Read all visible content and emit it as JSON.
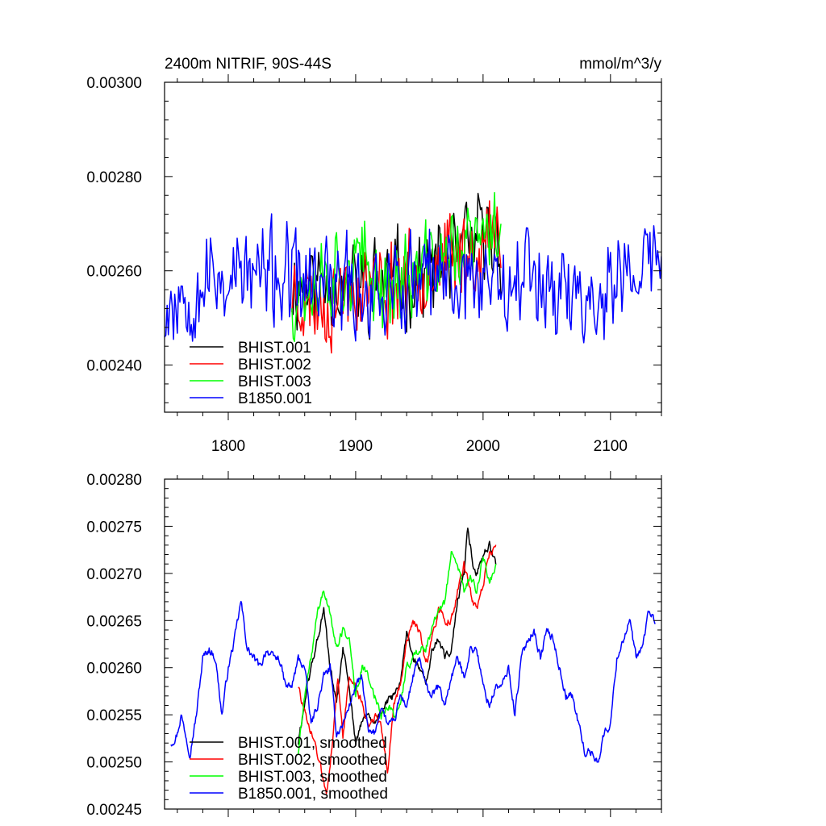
{
  "chart_data": [
    {
      "type": "line",
      "title_left": "2400m NITRIF, 90S-44S",
      "title_right": "mmol/m^3/y",
      "xlim": [
        1750,
        2140
      ],
      "ylim": [
        0.0023,
        0.003
      ],
      "x_ticks": [
        1800,
        1900,
        2000,
        2100
      ],
      "x_tick_labels": [
        "1800",
        "1900",
        "2000",
        "2100"
      ],
      "y_ticks": [
        0.0024,
        0.0026,
        0.0028,
        0.003
      ],
      "y_tick_labels": [
        "0.00240",
        "0.00260",
        "0.00280",
        "0.00300"
      ],
      "legend": [
        "BHIST.001",
        "BHIST.002",
        "BHIST.003",
        "B1850.001"
      ],
      "legend_location": "lower-left",
      "series": [
        {
          "name": "BHIST.001",
          "color": "#000000",
          "start": 1850,
          "end": 2014,
          "base": [
            [
              1850,
              0.00257
            ],
            [
              1875,
              0.00258
            ],
            [
              1900,
              0.00256
            ],
            [
              1925,
              0.00258
            ],
            [
              1950,
              0.00259
            ],
            [
              1975,
              0.00262
            ],
            [
              2000,
              0.00267
            ],
            [
              2014,
              0.00266
            ]
          ],
          "noise": 0.00011,
          "seed": 11
        },
        {
          "name": "BHIST.002",
          "color": "#ff0000",
          "start": 1850,
          "end": 2014,
          "base": [
            [
              1850,
              0.00256
            ],
            [
              1875,
              0.00253
            ],
            [
              1900,
              0.00257
            ],
            [
              1925,
              0.00256
            ],
            [
              1950,
              0.00261
            ],
            [
              1975,
              0.00262
            ],
            [
              2000,
              0.00265
            ],
            [
              2014,
              0.00268
            ]
          ],
          "noise": 0.00011,
          "seed": 23
        },
        {
          "name": "BHIST.003",
          "color": "#00ff00",
          "start": 1850,
          "end": 2014,
          "base": [
            [
              1850,
              0.00255
            ],
            [
              1875,
              0.0026
            ],
            [
              1900,
              0.00261
            ],
            [
              1925,
              0.00257
            ],
            [
              1950,
              0.00259
            ],
            [
              1975,
              0.00264
            ],
            [
              2000,
              0.00266
            ],
            [
              2014,
              0.0027
            ]
          ],
          "noise": 0.00011,
          "seed": 37
        },
        {
          "name": "B1850.001",
          "color": "#0000ff",
          "start": 1750,
          "end": 2140,
          "base": [
            [
              1750,
              0.00253
            ],
            [
              1780,
              0.00258
            ],
            [
              1800,
              0.00259
            ],
            [
              1830,
              0.00259
            ],
            [
              1860,
              0.00257
            ],
            [
              1900,
              0.00256
            ],
            [
              1950,
              0.00257
            ],
            [
              2000,
              0.00259
            ],
            [
              2040,
              0.0026
            ],
            [
              2080,
              0.00253
            ],
            [
              2110,
              0.00258
            ],
            [
              2140,
              0.00264
            ]
          ],
          "noise": 0.00012,
          "seed": 53
        }
      ]
    },
    {
      "type": "line",
      "xlim": [
        1750,
        2140
      ],
      "ylim": [
        0.00245,
        0.0028
      ],
      "x_ticks": [
        1800,
        1900,
        2000,
        2100
      ],
      "y_ticks": [
        0.00245,
        0.0025,
        0.00255,
        0.0026,
        0.00265,
        0.0027,
        0.00275,
        0.0028
      ],
      "y_tick_labels": [
        "0.00245",
        "0.00250",
        "0.00255",
        "0.00260",
        "0.00265",
        "0.00270",
        "0.00275",
        "0.00280"
      ],
      "legend": [
        "BHIST.001, smoothed",
        "BHIST.002, smoothed",
        "BHIST.003, smoothed",
        "B1850.001, smoothed"
      ],
      "legend_location": "lower-left",
      "series": [
        {
          "name": "BHIST.001, smoothed",
          "color": "#000000",
          "start": 1855,
          "end": 2010,
          "base": [
            [
              1855,
              0.00252
            ],
            [
              1862,
              0.00258
            ],
            [
              1870,
              0.00263
            ],
            [
              1875,
              0.00266
            ],
            [
              1880,
              0.0026
            ],
            [
              1885,
              0.00256
            ],
            [
              1890,
              0.00262
            ],
            [
              1895,
              0.00258
            ],
            [
              1900,
              0.00252
            ],
            [
              1907,
              0.00255
            ],
            [
              1915,
              0.00254
            ],
            [
              1922,
              0.00256
            ],
            [
              1930,
              0.00257
            ],
            [
              1935,
              0.00258
            ],
            [
              1940,
              0.00264
            ],
            [
              1945,
              0.00261
            ],
            [
              1950,
              0.0026
            ],
            [
              1955,
              0.00258
            ],
            [
              1960,
              0.00262
            ],
            [
              1965,
              0.00263
            ],
            [
              1970,
              0.00261
            ],
            [
              1975,
              0.00262
            ],
            [
              1980,
              0.00267
            ],
            [
              1985,
              0.0027
            ],
            [
              1988,
              0.00275
            ],
            [
              1992,
              0.00271
            ],
            [
              1995,
              0.0027
            ],
            [
              2000,
              0.00272
            ],
            [
              2005,
              0.00273
            ],
            [
              2010,
              0.00271
            ]
          ],
          "noise": 9e-06,
          "seed": 61
        },
        {
          "name": "BHIST.002, smoothed",
          "color": "#ff0000",
          "start": 1855,
          "end": 2010,
          "base": [
            [
              1855,
              0.00258
            ],
            [
              1862,
              0.00254
            ],
            [
              1868,
              0.00252
            ],
            [
              1873,
              0.00249
            ],
            [
              1877,
              0.00247
            ],
            [
              1882,
              0.00252
            ],
            [
              1886,
              0.00259
            ],
            [
              1890,
              0.00253
            ],
            [
              1895,
              0.00259
            ],
            [
              1900,
              0.00258
            ],
            [
              1905,
              0.00256
            ],
            [
              1910,
              0.00254
            ],
            [
              1915,
              0.00255
            ],
            [
              1920,
              0.00254
            ],
            [
              1925,
              0.00249
            ],
            [
              1930,
              0.00256
            ],
            [
              1935,
              0.00258
            ],
            [
              1940,
              0.00263
            ],
            [
              1945,
              0.00265
            ],
            [
              1950,
              0.00264
            ],
            [
              1955,
              0.0026
            ],
            [
              1960,
              0.00263
            ],
            [
              1965,
              0.00266
            ],
            [
              1970,
              0.00265
            ],
            [
              1975,
              0.00265
            ],
            [
              1980,
              0.00268
            ],
            [
              1985,
              0.00271
            ],
            [
              1990,
              0.00268
            ],
            [
              1995,
              0.00266
            ],
            [
              2000,
              0.00269
            ],
            [
              2005,
              0.00272
            ],
            [
              2010,
              0.00273
            ]
          ],
          "noise": 9e-06,
          "seed": 73
        },
        {
          "name": "BHIST.003, smoothed",
          "color": "#00ff00",
          "start": 1855,
          "end": 2010,
          "base": [
            [
              1855,
              0.00251
            ],
            [
              1860,
              0.00257
            ],
            [
              1865,
              0.00261
            ],
            [
              1870,
              0.00266
            ],
            [
              1875,
              0.00268
            ],
            [
              1880,
              0.00266
            ],
            [
              1885,
              0.00262
            ],
            [
              1890,
              0.00264
            ],
            [
              1895,
              0.00263
            ],
            [
              1900,
              0.00257
            ],
            [
              1905,
              0.0026
            ],
            [
              1910,
              0.00259
            ],
            [
              1915,
              0.00257
            ],
            [
              1920,
              0.00255
            ],
            [
              1925,
              0.00256
            ],
            [
              1930,
              0.00255
            ],
            [
              1935,
              0.00256
            ],
            [
              1940,
              0.0026
            ],
            [
              1945,
              0.00261
            ],
            [
              1950,
              0.00262
            ],
            [
              1955,
              0.00262
            ],
            [
              1960,
              0.00264
            ],
            [
              1965,
              0.00266
            ],
            [
              1970,
              0.00267
            ],
            [
              1975,
              0.00272
            ],
            [
              1980,
              0.00271
            ],
            [
              1985,
              0.00268
            ],
            [
              1990,
              0.0027
            ],
            [
              1995,
              0.00268
            ],
            [
              2000,
              0.00272
            ],
            [
              2005,
              0.00269
            ],
            [
              2010,
              0.00271
            ]
          ],
          "noise": 9e-06,
          "seed": 89
        },
        {
          "name": "B1850.001, smoothed",
          "color": "#0000ff",
          "start": 1755,
          "end": 2135,
          "base": [
            [
              1755,
              0.00252
            ],
            [
              1760,
              0.00253
            ],
            [
              1763,
              0.00255
            ],
            [
              1770,
              0.00251
            ],
            [
              1775,
              0.00255
            ],
            [
              1780,
              0.00261
            ],
            [
              1785,
              0.00262
            ],
            [
              1790,
              0.00261
            ],
            [
              1795,
              0.00255
            ],
            [
              1800,
              0.0026
            ],
            [
              1805,
              0.00263
            ],
            [
              1810,
              0.00267
            ],
            [
              1815,
              0.00262
            ],
            [
              1820,
              0.00261
            ],
            [
              1825,
              0.0026
            ],
            [
              1830,
              0.00262
            ],
            [
              1835,
              0.00261
            ],
            [
              1840,
              0.00261
            ],
            [
              1845,
              0.00258
            ],
            [
              1850,
              0.00258
            ],
            [
              1855,
              0.00261
            ],
            [
              1860,
              0.0026
            ],
            [
              1865,
              0.00254
            ],
            [
              1870,
              0.00256
            ],
            [
              1875,
              0.00259
            ],
            [
              1880,
              0.0026
            ],
            [
              1885,
              0.00253
            ],
            [
              1890,
              0.00254
            ],
            [
              1895,
              0.00256
            ],
            [
              1900,
              0.00258
            ],
            [
              1905,
              0.00259
            ],
            [
              1910,
              0.00253
            ],
            [
              1915,
              0.00253
            ],
            [
              1920,
              0.00256
            ],
            [
              1925,
              0.00254
            ],
            [
              1930,
              0.00254
            ],
            [
              1935,
              0.00257
            ],
            [
              1940,
              0.00256
            ],
            [
              1945,
              0.00259
            ],
            [
              1950,
              0.00261
            ],
            [
              1955,
              0.00258
            ],
            [
              1960,
              0.00257
            ],
            [
              1965,
              0.00258
            ],
            [
              1970,
              0.00256
            ],
            [
              1975,
              0.00259
            ],
            [
              1980,
              0.00261
            ],
            [
              1985,
              0.00259
            ],
            [
              1990,
              0.00262
            ],
            [
              1995,
              0.00262
            ],
            [
              2000,
              0.00258
            ],
            [
              2005,
              0.00256
            ],
            [
              2010,
              0.00258
            ],
            [
              2015,
              0.00258
            ],
            [
              2020,
              0.0026
            ],
            [
              2025,
              0.00255
            ],
            [
              2030,
              0.00261
            ],
            [
              2035,
              0.00263
            ],
            [
              2040,
              0.00264
            ],
            [
              2045,
              0.00261
            ],
            [
              2050,
              0.00264
            ],
            [
              2055,
              0.00263
            ],
            [
              2060,
              0.0026
            ],
            [
              2065,
              0.00257
            ],
            [
              2070,
              0.00257
            ],
            [
              2075,
              0.00254
            ],
            [
              2080,
              0.00251
            ],
            [
              2085,
              0.00251
            ],
            [
              2090,
              0.0025
            ],
            [
              2095,
              0.00253
            ],
            [
              2100,
              0.00254
            ],
            [
              2105,
              0.00261
            ],
            [
              2110,
              0.00263
            ],
            [
              2115,
              0.00265
            ],
            [
              2120,
              0.00261
            ],
            [
              2125,
              0.00262
            ],
            [
              2130,
              0.00266
            ],
            [
              2135,
              0.00265
            ]
          ],
          "noise": 9e-06,
          "seed": 97
        }
      ]
    }
  ]
}
